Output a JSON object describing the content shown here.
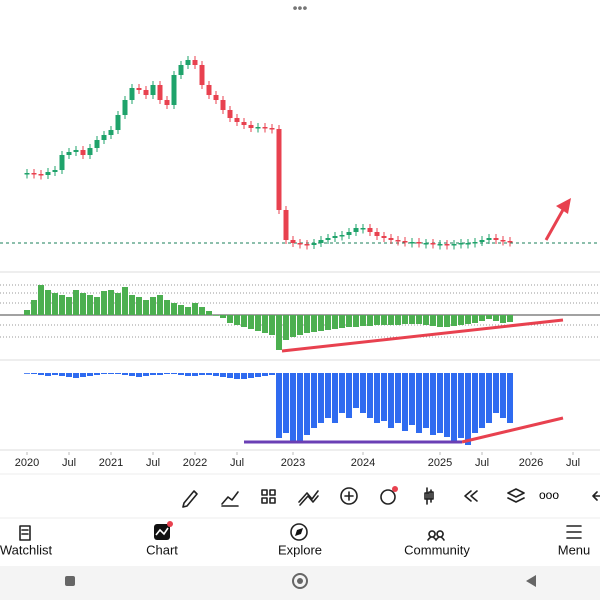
{
  "chart_data": [
    {
      "type": "candlestick",
      "ylim": [
        0,
        250
      ],
      "color_up": "#1fa36b",
      "color_down": "#e8414f",
      "values": [
        92,
        91,
        90,
        93,
        95,
        110,
        113,
        115,
        110,
        117,
        125,
        130,
        135,
        150,
        165,
        177,
        175,
        170,
        180,
        165,
        160,
        190,
        200,
        205,
        200,
        180,
        170,
        165,
        155,
        147,
        143,
        140,
        137,
        138,
        137,
        136,
        55,
        25,
        22,
        21,
        20,
        22,
        25,
        27,
        29,
        30,
        33,
        37,
        37,
        33,
        29,
        27,
        25,
        24,
        23,
        23,
        22,
        22,
        21,
        21,
        20,
        21,
        22,
        22,
        23,
        25,
        27,
        25,
        24,
        23
      ],
      "xticks": [
        {
          "value": 0,
          "label": "2020"
        },
        {
          "value": 6,
          "label": "Jul"
        },
        {
          "value": 12,
          "label": "2021"
        },
        {
          "value": 18,
          "label": "Jul"
        },
        {
          "value": 24,
          "label": "2022"
        },
        {
          "value": 30,
          "label": "Jul"
        },
        {
          "value": 38,
          "label": "2023"
        },
        {
          "value": 48,
          "label": "2024"
        },
        {
          "value": 59,
          "label": "2025"
        },
        {
          "value": 65,
          "label": "Jul"
        },
        {
          "value": 72,
          "label": "2026"
        },
        {
          "value": 78,
          "label": "Jul"
        }
      ]
    },
    {
      "type": "bar",
      "ylim": [
        -40,
        40
      ],
      "color": "#4caf50",
      "values": [
        5,
        15,
        30,
        25,
        22,
        20,
        18,
        25,
        22,
        20,
        18,
        24,
        25,
        22,
        28,
        20,
        18,
        15,
        18,
        20,
        15,
        12,
        10,
        8,
        12,
        8,
        4,
        0,
        -3,
        -8,
        -10,
        -12,
        -14,
        -16,
        -18,
        -20,
        -35,
        -25,
        -22,
        -20,
        -18,
        -17,
        -16,
        -15,
        -14,
        -13,
        -12,
        -12,
        -11,
        -11,
        -10,
        -10,
        -10,
        -10,
        -9,
        -9,
        -9,
        -10,
        -11,
        -12,
        -12,
        -11,
        -10,
        -9,
        -8,
        -6,
        -4,
        -6,
        -8,
        -7
      ]
    },
    {
      "type": "bar",
      "ylim": [
        -80,
        10
      ],
      "color": "#2f6bf0",
      "values": [
        0,
        -1,
        -2,
        -3,
        -2,
        -3,
        -4,
        -5,
        -4,
        -3,
        -2,
        -1,
        -1,
        -1,
        -2,
        -3,
        -4,
        -3,
        -2,
        -2,
        -1,
        -1,
        -2,
        -3,
        -3,
        -2,
        -2,
        -3,
        -4,
        -5,
        -6,
        -6,
        -5,
        -4,
        -3,
        -2,
        -65,
        -60,
        -68,
        -70,
        -62,
        -55,
        -50,
        -45,
        -50,
        -40,
        -45,
        -35,
        -40,
        -45,
        -50,
        -48,
        -55,
        -50,
        -58,
        -52,
        -60,
        -55,
        -62,
        -60,
        -64,
        -70,
        -65,
        -72,
        -60,
        -55,
        -50,
        -40,
        -45,
        -50
      ]
    }
  ],
  "nav": [
    "Watchlist",
    "Chart",
    "Explore",
    "Community",
    "Menu"
  ]
}
